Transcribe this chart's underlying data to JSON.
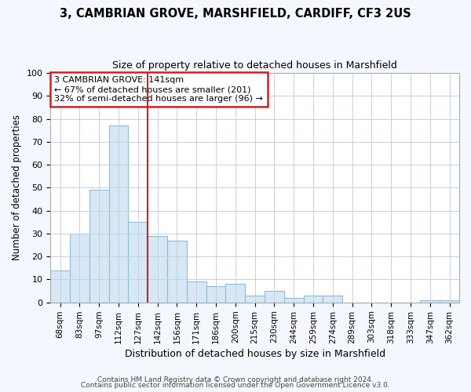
{
  "title1": "3, CAMBRIAN GROVE, MARSHFIELD, CARDIFF, CF3 2US",
  "title2": "Size of property relative to detached houses in Marshfield",
  "xlabel": "Distribution of detached houses by size in Marshfield",
  "ylabel": "Number of detached properties",
  "categories": [
    "68sqm",
    "83sqm",
    "97sqm",
    "112sqm",
    "127sqm",
    "142sqm",
    "156sqm",
    "171sqm",
    "186sqm",
    "200sqm",
    "215sqm",
    "230sqm",
    "244sqm",
    "259sqm",
    "274sqm",
    "289sqm",
    "303sqm",
    "318sqm",
    "333sqm",
    "347sqm",
    "362sqm"
  ],
  "values": [
    14,
    30,
    49,
    77,
    35,
    29,
    27,
    9,
    7,
    8,
    3,
    5,
    2,
    3,
    3,
    0,
    0,
    0,
    0,
    1,
    1
  ],
  "bar_color": "#d6e8f5",
  "bar_edge_color": "#8fbcd4",
  "property_line_x": 4.5,
  "annotation_line1": "3 CAMBRIAN GROVE: 141sqm",
  "annotation_line2": "← 67% of detached houses are smaller (201)",
  "annotation_line3": "32% of semi-detached houses are larger (96) →",
  "annotation_box_color": "#ffffff",
  "annotation_box_edge_color": "#cc2222",
  "property_line_color": "#cc2222",
  "ylim": [
    0,
    100
  ],
  "yticks": [
    0,
    10,
    20,
    30,
    40,
    50,
    60,
    70,
    80,
    90,
    100
  ],
  "footer1": "Contains HM Land Registry data © Crown copyright and database right 2024.",
  "footer2": "Contains public sector information licensed under the Open Government Licence v3.0.",
  "bg_color": "#f5f7ff",
  "plot_bg_color": "#ffffff",
  "grid_color": "#c8cfe0"
}
